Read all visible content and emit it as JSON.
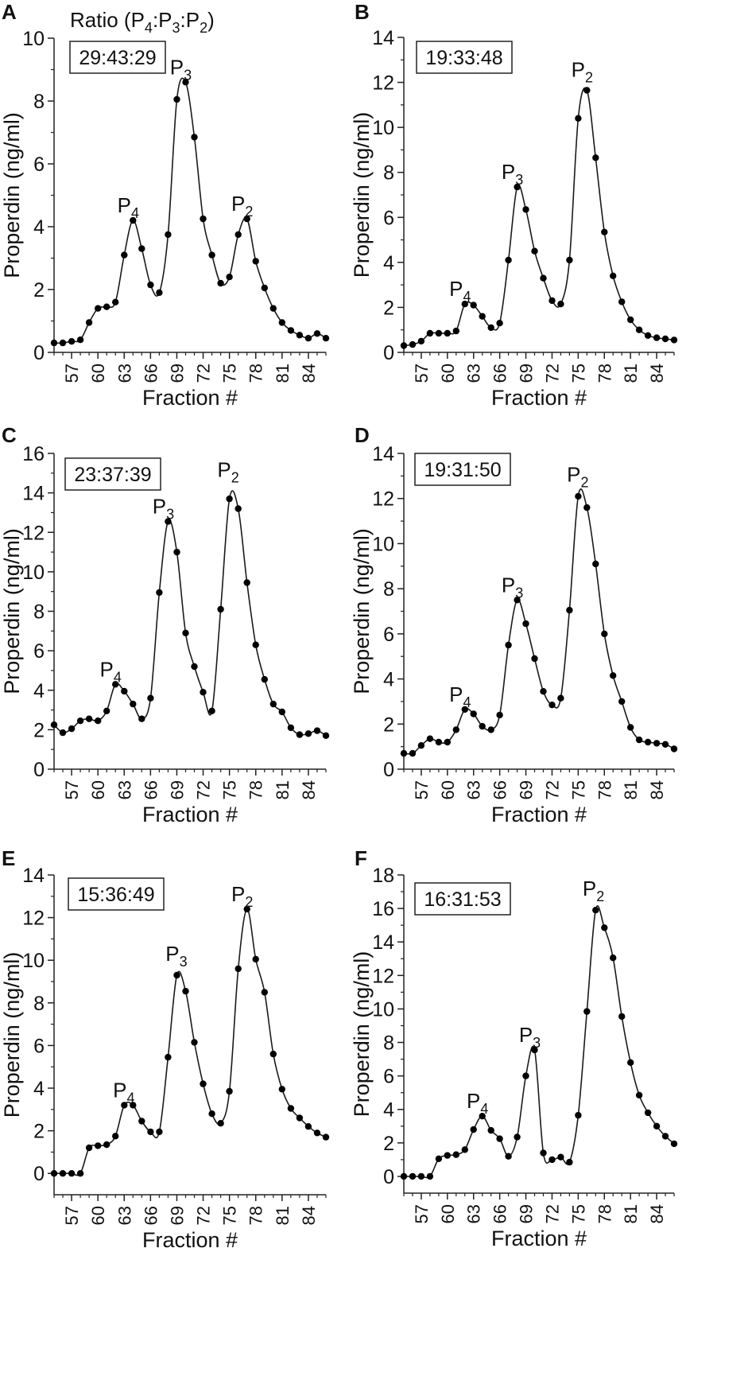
{
  "figure": {
    "header": {
      "prefix": "Ratio (",
      "parts": [
        "P",
        "4",
        ":P",
        "3",
        ":P",
        "2"
      ],
      "suffix": ")"
    },
    "colors": {
      "line": "#1a1a1a",
      "marker": "#000000",
      "text": "#111111",
      "axis": "#222222",
      "box": "#222222"
    }
  },
  "chart_data": [
    {
      "panel": "A",
      "type": "line",
      "ratio": "29:43:29",
      "xlabel": "Fraction #",
      "ylabel": "Properdin (ng/ml)",
      "xlim": [
        55,
        86
      ],
      "ylim": [
        0,
        10
      ],
      "yticks": [
        0,
        2,
        4,
        6,
        8,
        10
      ],
      "xticks": [
        57,
        60,
        63,
        66,
        69,
        72,
        75,
        78,
        81,
        84
      ],
      "x": [
        55,
        56,
        57,
        58,
        59,
        60,
        61,
        62,
        63,
        64,
        65,
        66,
        67,
        68,
        69,
        70,
        71,
        72,
        73,
        74,
        75,
        76,
        77,
        78,
        79,
        80,
        81,
        82,
        83,
        84,
        85,
        86
      ],
      "series": [
        {
          "name": "Properdin",
          "values": [
            0.3,
            0.3,
            0.35,
            0.4,
            0.95,
            1.4,
            1.45,
            1.6,
            3.1,
            4.2,
            3.3,
            2.15,
            1.9,
            3.75,
            8.05,
            8.6,
            6.85,
            4.25,
            3.1,
            2.2,
            2.4,
            3.75,
            4.25,
            2.9,
            2.05,
            1.4,
            0.95,
            0.7,
            0.55,
            0.45,
            0.6,
            0.45
          ]
        }
      ],
      "peaks": [
        {
          "main": "P",
          "sub": "4",
          "x": 64,
          "y": 4.2
        },
        {
          "main": "P",
          "sub": "3",
          "x": 70,
          "y": 8.6
        },
        {
          "main": "P",
          "sub": "2",
          "x": 77,
          "y": 4.25
        }
      ]
    },
    {
      "panel": "B",
      "type": "line",
      "ratio": "19:33:48",
      "xlabel": "Fraction #",
      "ylabel": "Properdin (ng/ml)",
      "xlim": [
        55,
        86
      ],
      "ylim": [
        0,
        14
      ],
      "yticks": [
        0,
        2,
        4,
        6,
        8,
        10,
        12,
        14
      ],
      "xticks": [
        57,
        60,
        63,
        66,
        69,
        72,
        75,
        78,
        81,
        84
      ],
      "x": [
        55,
        56,
        57,
        58,
        59,
        60,
        61,
        62,
        63,
        64,
        65,
        66,
        67,
        68,
        69,
        70,
        71,
        72,
        73,
        74,
        75,
        76,
        77,
        78,
        79,
        80,
        81,
        82,
        83,
        84,
        85,
        86
      ],
      "series": [
        {
          "name": "Properdin",
          "values": [
            0.3,
            0.35,
            0.5,
            0.85,
            0.85,
            0.85,
            0.95,
            2.15,
            2.1,
            1.6,
            1.1,
            1.3,
            4.1,
            7.35,
            6.35,
            4.5,
            3.3,
            2.3,
            2.15,
            4.1,
            10.4,
            11.65,
            8.65,
            5.35,
            3.4,
            2.25,
            1.45,
            1.0,
            0.75,
            0.65,
            0.6,
            0.55
          ]
        }
      ],
      "peaks": [
        {
          "main": "P",
          "sub": "4",
          "x": 62,
          "y": 2.15
        },
        {
          "main": "P",
          "sub": "3",
          "x": 68,
          "y": 7.35
        },
        {
          "main": "P",
          "sub": "2",
          "x": 76,
          "y": 11.9
        }
      ]
    },
    {
      "panel": "C",
      "type": "line",
      "ratio": "23:37:39",
      "xlabel": "Fraction #",
      "ylabel": "Properdin (ng/ml)",
      "xlim": [
        55,
        86
      ],
      "ylim": [
        0,
        16
      ],
      "yticks": [
        0,
        2,
        4,
        6,
        8,
        10,
        12,
        14,
        16
      ],
      "xticks": [
        57,
        60,
        63,
        66,
        69,
        72,
        75,
        78,
        81,
        84
      ],
      "x": [
        55,
        56,
        57,
        58,
        59,
        60,
        61,
        62,
        63,
        64,
        65,
        66,
        67,
        68,
        69,
        70,
        71,
        72,
        73,
        74,
        75,
        76,
        77,
        78,
        79,
        80,
        81,
        82,
        83,
        84,
        85,
        86
      ],
      "series": [
        {
          "name": "Properdin",
          "values": [
            2.25,
            1.85,
            2.05,
            2.45,
            2.55,
            2.45,
            2.95,
            4.3,
            3.95,
            3.3,
            2.55,
            3.6,
            8.95,
            12.55,
            11.0,
            6.9,
            5.2,
            3.9,
            2.95,
            8.1,
            13.7,
            13.2,
            9.45,
            6.3,
            4.55,
            3.3,
            2.9,
            2.1,
            1.75,
            1.8,
            1.95,
            1.7
          ]
        }
      ],
      "peaks": [
        {
          "main": "P",
          "sub": "4",
          "x": 62,
          "y": 4.3
        },
        {
          "main": "P",
          "sub": "3",
          "x": 68,
          "y": 12.55
        },
        {
          "main": "P",
          "sub": "2",
          "x": 75.4,
          "y": 14.4
        }
      ]
    },
    {
      "panel": "D",
      "type": "line",
      "ratio": "19:31:50",
      "xlabel": "Fraction #",
      "ylabel": "Properdin (ng/ml)",
      "xlim": [
        55,
        86
      ],
      "ylim": [
        0,
        14
      ],
      "yticks": [
        0,
        2,
        4,
        6,
        8,
        10,
        12,
        14
      ],
      "xticks": [
        57,
        60,
        63,
        66,
        69,
        72,
        75,
        78,
        81,
        84
      ],
      "x": [
        55,
        56,
        57,
        58,
        59,
        60,
        61,
        62,
        63,
        64,
        65,
        66,
        67,
        68,
        69,
        70,
        71,
        72,
        73,
        74,
        75,
        76,
        77,
        78,
        79,
        80,
        81,
        82,
        83,
        84,
        85,
        86
      ],
      "series": [
        {
          "name": "Properdin",
          "values": [
            0.7,
            0.7,
            1.05,
            1.35,
            1.2,
            1.2,
            1.75,
            2.65,
            2.45,
            1.9,
            1.75,
            2.4,
            5.5,
            7.5,
            6.45,
            4.9,
            3.45,
            2.85,
            3.15,
            7.05,
            12.1,
            11.6,
            9.1,
            6.0,
            4.15,
            3.0,
            1.85,
            1.3,
            1.2,
            1.15,
            1.1,
            0.9
          ]
        }
      ],
      "peaks": [
        {
          "main": "P",
          "sub": "4",
          "x": 62,
          "y": 2.65
        },
        {
          "main": "P",
          "sub": "3",
          "x": 68,
          "y": 7.5
        },
        {
          "main": "P",
          "sub": "2",
          "x": 75.5,
          "y": 12.4
        }
      ]
    },
    {
      "panel": "E",
      "type": "line",
      "ratio": "15:36:49",
      "xlabel": "Fraction #",
      "ylabel": "Properdin (ng/ml)",
      "xlim": [
        55,
        86
      ],
      "ylim": [
        -1,
        14
      ],
      "yticks": [
        0,
        2,
        4,
        6,
        8,
        10,
        12,
        14
      ],
      "xticks": [
        57,
        60,
        63,
        66,
        69,
        72,
        75,
        78,
        81,
        84
      ],
      "x": [
        55,
        56,
        57,
        58,
        59,
        60,
        61,
        62,
        63,
        64,
        65,
        66,
        67,
        68,
        69,
        70,
        71,
        72,
        73,
        74,
        75,
        76,
        77,
        78,
        79,
        80,
        81,
        82,
        83,
        84,
        85,
        86
      ],
      "series": [
        {
          "name": "Properdin",
          "values": [
            0,
            0,
            0,
            0,
            1.2,
            1.3,
            1.35,
            1.75,
            3.2,
            3.2,
            2.45,
            1.95,
            1.95,
            5.45,
            9.3,
            8.55,
            6.15,
            4.2,
            2.8,
            2.35,
            3.85,
            9.6,
            12.4,
            10.05,
            8.5,
            5.6,
            3.95,
            3.05,
            2.6,
            2.2,
            1.9,
            1.7
          ]
        }
      ],
      "peaks": [
        {
          "main": "P",
          "sub": "4",
          "x": 63.5,
          "y": 3.2
        },
        {
          "main": "P",
          "sub": "3",
          "x": 69.5,
          "y": 9.6
        },
        {
          "main": "P",
          "sub": "2",
          "x": 77,
          "y": 12.4
        }
      ]
    },
    {
      "panel": "F",
      "type": "line",
      "ratio": "16:31:53",
      "xlabel": "Fraction #",
      "ylabel": "Properdin (ng/ml)",
      "xlim": [
        55,
        86
      ],
      "ylim": [
        -1,
        18
      ],
      "yticks": [
        0,
        2,
        4,
        6,
        8,
        10,
        12,
        14,
        16,
        18
      ],
      "xticks": [
        57,
        60,
        63,
        66,
        69,
        72,
        75,
        78,
        81,
        84
      ],
      "x": [
        55,
        56,
        57,
        58,
        59,
        60,
        61,
        62,
        63,
        64,
        65,
        66,
        67,
        68,
        69,
        70,
        71,
        72,
        73,
        74,
        75,
        76,
        77,
        78,
        79,
        80,
        81,
        82,
        83,
        84,
        85,
        86
      ],
      "series": [
        {
          "name": "Properdin",
          "values": [
            0,
            0,
            0,
            0,
            1.05,
            1.25,
            1.3,
            1.6,
            2.8,
            3.6,
            2.75,
            2.25,
            1.2,
            2.35,
            6.0,
            7.55,
            1.4,
            1.0,
            1.15,
            0.85,
            3.65,
            9.85,
            15.9,
            14.85,
            13.05,
            9.55,
            6.8,
            4.85,
            3.8,
            3.0,
            2.4,
            1.95
          ]
        }
      ],
      "peaks": [
        {
          "main": "P",
          "sub": "4",
          "x": 64,
          "y": 3.6
        },
        {
          "main": "P",
          "sub": "3",
          "x": 70,
          "y": 7.55
        },
        {
          "main": "P",
          "sub": "2",
          "x": 77.3,
          "y": 16.3
        }
      ]
    }
  ]
}
